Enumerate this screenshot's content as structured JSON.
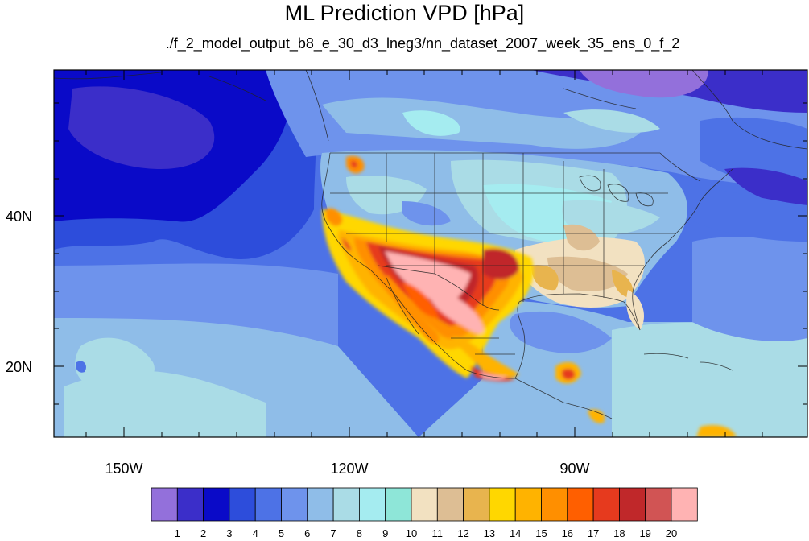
{
  "title": "ML Prediction VPD [hPa]",
  "subtitle": "./f_2_model_output_b8_e_30_d3_lneg3/nn_dataset_2007_week_35_ens_0_f_2",
  "lat_labels": [
    "40N",
    "20N"
  ],
  "lon_labels": [
    "150W",
    "120W",
    "90W"
  ],
  "colorbar": {
    "labels": [
      "1",
      "2",
      "3",
      "4",
      "5",
      "6",
      "7",
      "8",
      "9",
      "10",
      "11",
      "12",
      "13",
      "14",
      "15",
      "16",
      "17",
      "18",
      "19",
      "20"
    ],
    "colors": [
      "#9370db",
      "#3b2ec9",
      "#0a0ac8",
      "#2d4ddb",
      "#4d72e6",
      "#6e93ec",
      "#8fbde8",
      "#aadce6",
      "#a5ecf0",
      "#8ee6d8",
      "#f2e1c1",
      "#ddbe94",
      "#e8b44e",
      "#ffd700",
      "#ffb300",
      "#ff8f00",
      "#ff5f00",
      "#e63a1e",
      "#c0282a",
      "#d15454",
      "#ffb3b3"
    ]
  }
}
